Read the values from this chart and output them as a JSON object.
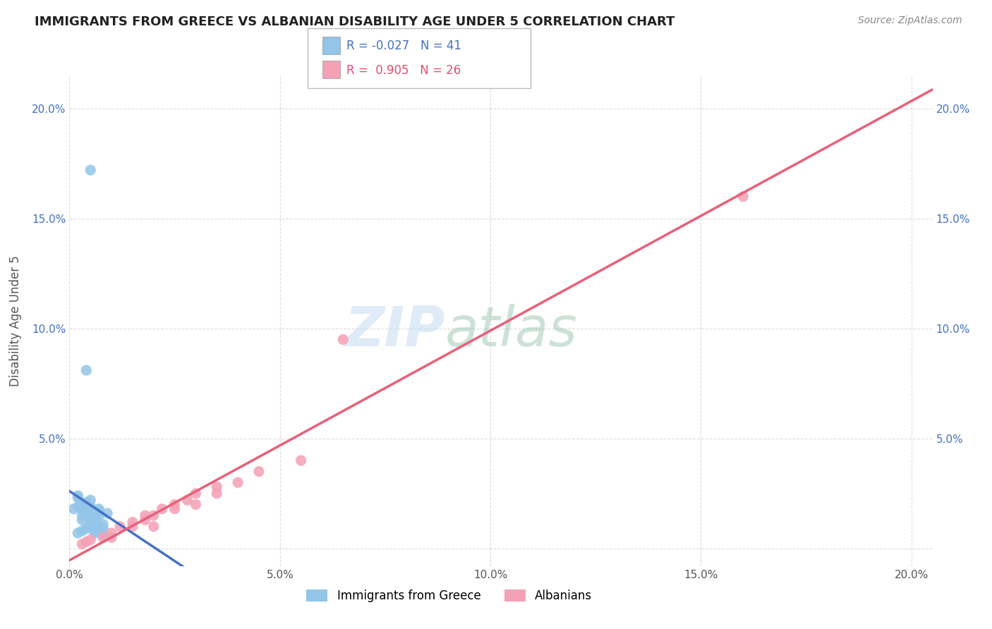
{
  "title": "IMMIGRANTS FROM GREECE VS ALBANIAN DISABILITY AGE UNDER 5 CORRELATION CHART",
  "source": "Source: ZipAtlas.com",
  "ylabel": "Disability Age Under 5",
  "xlim": [
    0.0,
    0.205
  ],
  "ylim": [
    -0.008,
    0.215
  ],
  "x_ticks": [
    0.0,
    0.05,
    0.1,
    0.15,
    0.2
  ],
  "x_tick_labels": [
    "0.0%",
    "5.0%",
    "10.0%",
    "15.0%",
    "20.0%"
  ],
  "y_ticks_left": [
    0.0,
    0.05,
    0.1,
    0.15,
    0.2
  ],
  "y_tick_labels_left": [
    "",
    "5.0%",
    "10.0%",
    "15.0%",
    "20.0%"
  ],
  "y_ticks_right": [
    0.05,
    0.1,
    0.15,
    0.2
  ],
  "y_tick_labels_right": [
    "5.0%",
    "10.0%",
    "15.0%",
    "20.0%"
  ],
  "greece_color": "#92C5E8",
  "albanian_color": "#F4A0B5",
  "greece_line_color": "#4472C4",
  "albanian_line_color": "#E8607A",
  "background_color": "#FFFFFF",
  "grid_color": "#CCCCCC",
  "R_greece": -0.027,
  "N_greece": 41,
  "R_albanian": 0.905,
  "N_albanian": 26,
  "greece_scatter_x": [
    0.005,
    0.007,
    0.004,
    0.003,
    0.002,
    0.008,
    0.006,
    0.005,
    0.004,
    0.007,
    0.003,
    0.006,
    0.005,
    0.004,
    0.003,
    0.006,
    0.007,
    0.004,
    0.005,
    0.008,
    0.002,
    0.005,
    0.006,
    0.003,
    0.004,
    0.001,
    0.006,
    0.007,
    0.003,
    0.009,
    0.005,
    0.002,
    0.006,
    0.004,
    0.005,
    0.006,
    0.002,
    0.003,
    0.005,
    0.006,
    0.008
  ],
  "greece_scatter_y": [
    0.022,
    0.018,
    0.016,
    0.015,
    0.007,
    0.009,
    0.013,
    0.018,
    0.021,
    0.015,
    0.019,
    0.014,
    0.011,
    0.009,
    0.008,
    0.013,
    0.017,
    0.019,
    0.172,
    0.011,
    0.023,
    0.014,
    0.01,
    0.02,
    0.015,
    0.018,
    0.008,
    0.01,
    0.013,
    0.016,
    0.019,
    0.024,
    0.011,
    0.081,
    0.014,
    0.007,
    0.019,
    0.018,
    0.01,
    0.012,
    0.006
  ],
  "albanian_scatter_x": [
    0.003,
    0.005,
    0.008,
    0.01,
    0.012,
    0.015,
    0.018,
    0.02,
    0.022,
    0.025,
    0.028,
    0.03,
    0.035,
    0.04,
    0.02,
    0.015,
    0.03,
    0.045,
    0.055,
    0.065,
    0.01,
    0.018,
    0.025,
    0.035,
    0.16,
    0.004
  ],
  "albanian_scatter_y": [
    0.002,
    0.004,
    0.005,
    0.007,
    0.01,
    0.01,
    0.013,
    0.015,
    0.018,
    0.018,
    0.022,
    0.025,
    0.025,
    0.03,
    0.01,
    0.012,
    0.02,
    0.035,
    0.04,
    0.095,
    0.005,
    0.015,
    0.02,
    0.028,
    0.16,
    0.003
  ]
}
